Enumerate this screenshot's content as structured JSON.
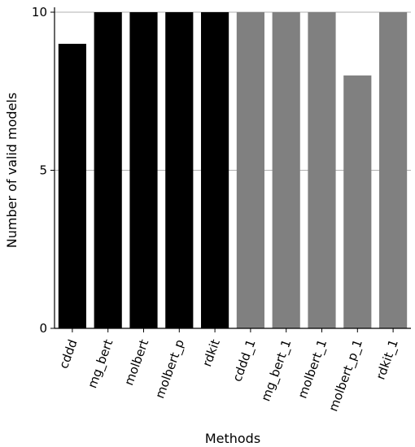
{
  "chart_data": {
    "type": "bar",
    "title": "",
    "xlabel": "Methods",
    "ylabel": "Number of valid models",
    "categories": [
      "cddd",
      "mg_bert",
      "molbert",
      "molbert_p",
      "rdkit",
      "cddd_1",
      "mg_bert_1",
      "molbert_1",
      "molbert_p_1",
      "rdkit_1"
    ],
    "values": [
      9,
      10,
      10,
      10,
      10,
      10,
      10,
      10,
      8,
      10
    ],
    "bar_colors": [
      "#000000",
      "#000000",
      "#000000",
      "#000000",
      "#000000",
      "#808080",
      "#808080",
      "#808080",
      "#808080",
      "#808080"
    ],
    "ylim": [
      0,
      10
    ],
    "yticks": [
      0,
      5,
      10
    ],
    "grid": "horizontal",
    "grid_color": "#b0b0b0"
  }
}
